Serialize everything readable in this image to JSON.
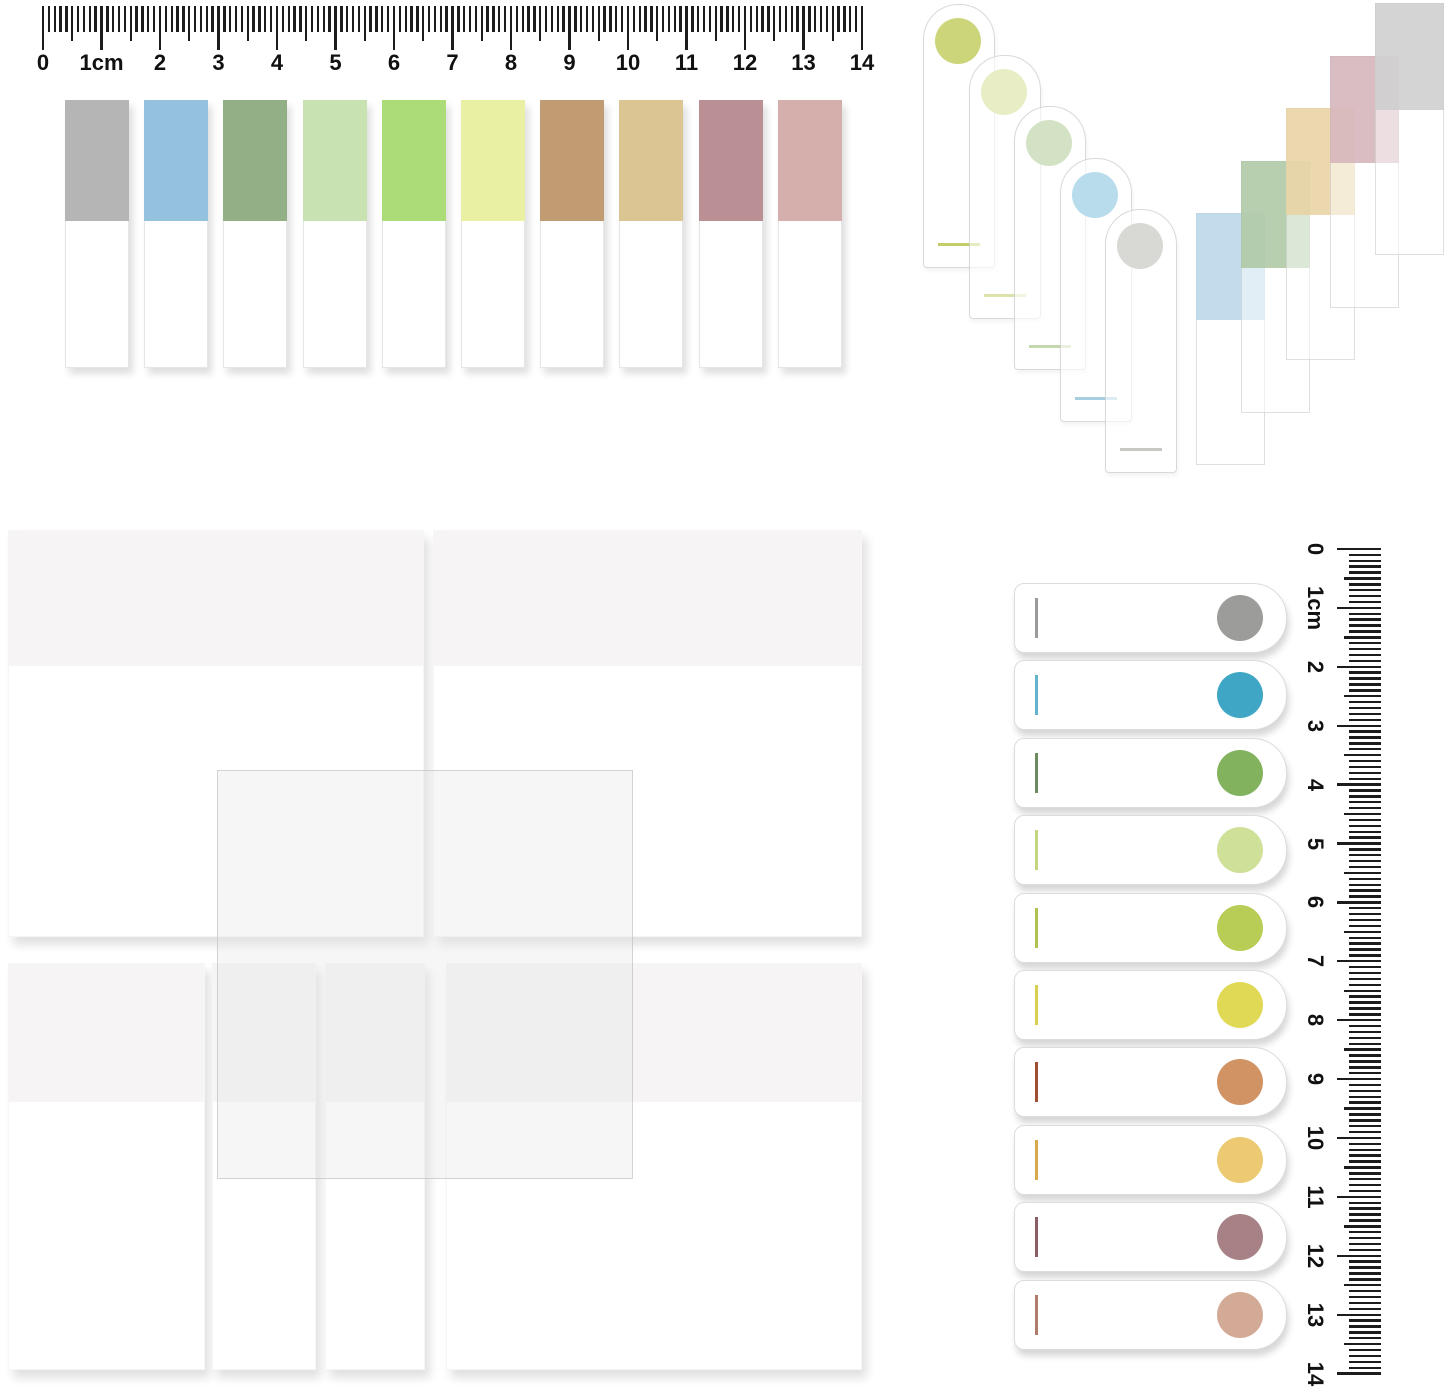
{
  "unit": "cm",
  "rulers": {
    "horizontal_labels": [
      "0",
      "1cm",
      "2",
      "3",
      "4",
      "5",
      "6",
      "7",
      "8",
      "9",
      "10",
      "11",
      "12",
      "13",
      "14"
    ],
    "vertical_labels": [
      "0",
      "1cm",
      "2",
      "3",
      "4",
      "5",
      "6",
      "7",
      "8",
      "9",
      "10",
      "11",
      "12",
      "13",
      "14"
    ],
    "tick_color": "#1c1c1c"
  },
  "flat_tabs": [
    {
      "name": "gray",
      "color": "#b5b5b5"
    },
    {
      "name": "blue",
      "color": "#94c2de"
    },
    {
      "name": "sage-green",
      "color": "#93af86"
    },
    {
      "name": "pale-green",
      "color": "#c8e2b2"
    },
    {
      "name": "yellow-green",
      "color": "#abdc78"
    },
    {
      "name": "pale-yellow",
      "color": "#e9efa3"
    },
    {
      "name": "tan-brown",
      "color": "#c19b72"
    },
    {
      "name": "khaki",
      "color": "#dbc593"
    },
    {
      "name": "mauve",
      "color": "#ba9094"
    },
    {
      "name": "dusty-pink",
      "color": "#d4afac"
    }
  ],
  "arch_tabs": [
    {
      "name": "yellow-green",
      "circle_color": "#cdd57b",
      "line_color": "#c3cc67"
    },
    {
      "name": "pale-yellow",
      "circle_color": "#e9edc6",
      "line_color": "#dde3ab"
    },
    {
      "name": "pale-green",
      "circle_color": "#d3e2c5",
      "line_color": "#c4d7ae"
    },
    {
      "name": "light-blue",
      "circle_color": "#b8dcec",
      "line_color": "#a8cfe0"
    },
    {
      "name": "gray",
      "circle_color": "#d8d8d5",
      "line_color": "#c8c8c4"
    }
  ],
  "stack_tabs": [
    {
      "name": "blue",
      "color": "#b9d6e9"
    },
    {
      "name": "sage-green",
      "color": "#aac5a1"
    },
    {
      "name": "khaki",
      "color": "#e8d1a1"
    },
    {
      "name": "mauve",
      "color": "#d3b1b9"
    },
    {
      "name": "gray",
      "color": "#cdcdcd"
    }
  ],
  "pill_tabs": [
    {
      "name": "gray",
      "circle_color": "#9c9c9a",
      "tick_color": "#9a9a9a"
    },
    {
      "name": "teal-blue",
      "circle_color": "#3fa7c5",
      "tick_color": "#63b5cd"
    },
    {
      "name": "green",
      "circle_color": "#82b25e",
      "tick_color": "#6e8a60"
    },
    {
      "name": "pale-yellow-green",
      "circle_color": "#cfe098",
      "tick_color": "#c4d67f"
    },
    {
      "name": "yellow-green",
      "circle_color": "#b7cd55",
      "tick_color": "#aec24e"
    },
    {
      "name": "yellow",
      "circle_color": "#dfd955",
      "tick_color": "#d6d04e"
    },
    {
      "name": "terracotta",
      "circle_color": "#d19264",
      "tick_color": "#a04f36"
    },
    {
      "name": "gold",
      "circle_color": "#edc972",
      "tick_color": "#d9a94e"
    },
    {
      "name": "mauve",
      "circle_color": "#a78186",
      "tick_color": "#8a5f63"
    },
    {
      "name": "dusty-rose",
      "circle_color": "#d3aa96",
      "tick_color": "#b07b6b"
    }
  ],
  "pads": {
    "band_color": "#f6f4f5",
    "face_color": "#ffffff",
    "overlay_tint": "rgba(233,233,233,0.4)"
  }
}
